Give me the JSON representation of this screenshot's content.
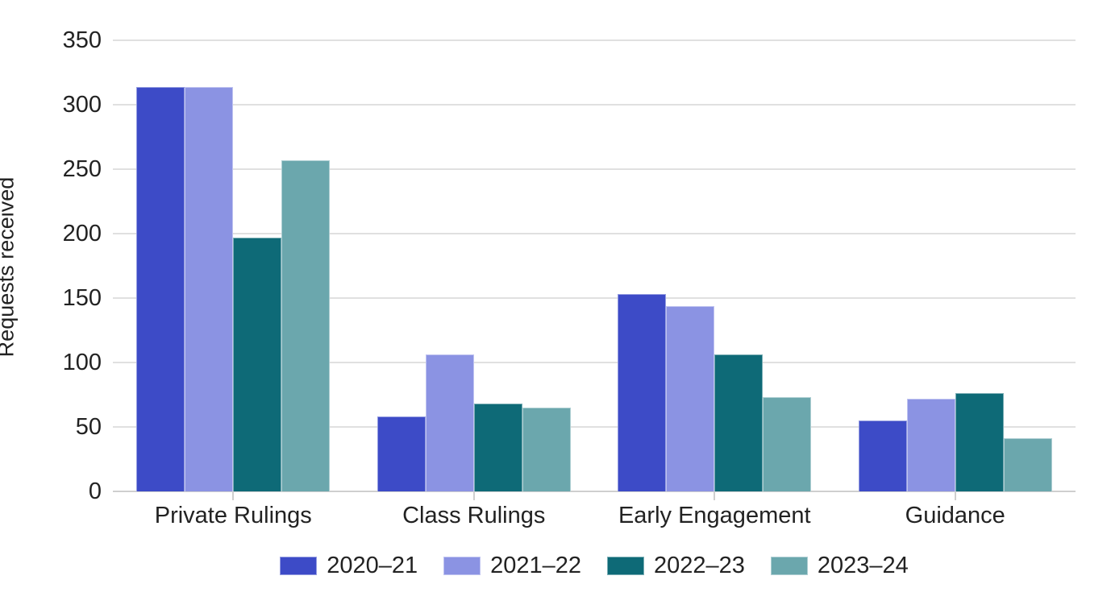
{
  "chart_data": {
    "type": "bar",
    "title": "",
    "xlabel": "",
    "ylabel": "Requests received",
    "ylim": [
      0,
      350
    ],
    "yticks": [
      0,
      50,
      100,
      150,
      200,
      250,
      300,
      350
    ],
    "grid": true,
    "legend_position": "bottom",
    "categories": [
      "Private Rulings",
      "Class Rulings",
      "Early Engagement",
      "Guidance"
    ],
    "series": [
      {
        "name": "2020–21",
        "color": "#3D4BC7",
        "values": [
          314,
          58,
          153,
          55
        ]
      },
      {
        "name": "2021–22",
        "color": "#8B93E3",
        "values": [
          314,
          106,
          144,
          72
        ]
      },
      {
        "name": "2022–23",
        "color": "#0E6A77",
        "values": [
          197,
          68,
          106,
          76
        ]
      },
      {
        "name": "2023–24",
        "color": "#6BA7AD",
        "values": [
          257,
          65,
          73,
          41
        ]
      }
    ]
  },
  "styles": {
    "grid_color": "#e0e0e0",
    "axis_color": "#cfcfcf",
    "text_color": "#222222",
    "background": "#ffffff"
  }
}
